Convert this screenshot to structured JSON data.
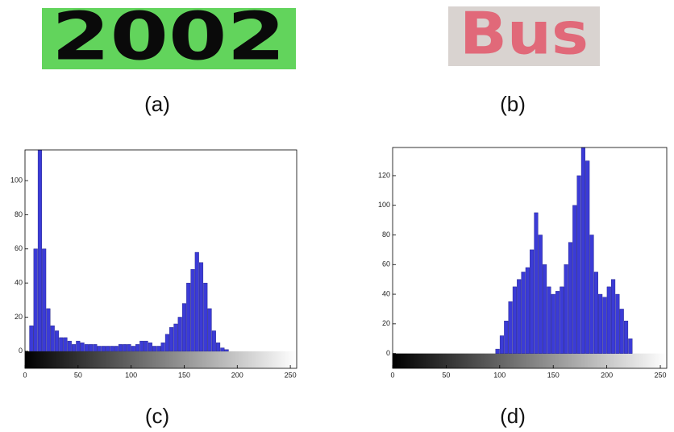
{
  "images": [
    {
      "text": "2002",
      "caption": "(a)"
    },
    {
      "text": "Bus",
      "caption": "(b)"
    }
  ],
  "chart_data": [
    {
      "type": "histogram",
      "caption": "(c)",
      "color": "#3b3bd6",
      "bins": [
        0,
        4,
        8,
        12,
        16,
        20,
        24,
        28,
        32,
        36,
        40,
        44,
        48,
        52,
        56,
        60,
        64,
        68,
        72,
        76,
        80,
        84,
        88,
        92,
        96,
        100,
        104,
        108,
        112,
        116,
        120,
        124,
        128,
        132,
        136,
        140,
        144,
        148,
        152,
        156,
        160,
        164,
        168,
        172,
        176,
        180,
        184,
        188,
        192,
        196,
        200,
        204,
        208,
        212,
        216,
        220,
        224,
        228,
        232,
        236,
        240,
        244,
        248,
        252,
        256
      ],
      "values": [
        0,
        15,
        60,
        118,
        60,
        25,
        15,
        12,
        8,
        8,
        6,
        4,
        6,
        5,
        4,
        4,
        4,
        3,
        3,
        3,
        3,
        3,
        4,
        4,
        4,
        3,
        4,
        6,
        6,
        5,
        3,
        3,
        5,
        10,
        14,
        16,
        20,
        28,
        40,
        48,
        58,
        52,
        40,
        25,
        12,
        5,
        2,
        1,
        0,
        0,
        0,
        0,
        0,
        0,
        0,
        0,
        0,
        0,
        0,
        0,
        0,
        0,
        0,
        0
      ],
      "xlim": [
        0,
        256
      ],
      "ylim": [
        -10,
        118
      ],
      "xticks": [
        0,
        50,
        100,
        150,
        200,
        250
      ],
      "yticks": [
        0,
        20,
        40,
        60,
        80,
        100
      ]
    },
    {
      "type": "histogram",
      "caption": "(d)",
      "color": "#3b3bd6",
      "bins": [
        0,
        4,
        8,
        12,
        16,
        20,
        24,
        28,
        32,
        36,
        40,
        44,
        48,
        52,
        56,
        60,
        64,
        68,
        72,
        76,
        80,
        84,
        88,
        92,
        96,
        100,
        104,
        108,
        112,
        116,
        120,
        124,
        128,
        132,
        136,
        140,
        144,
        148,
        152,
        156,
        160,
        164,
        168,
        172,
        176,
        180,
        184,
        188,
        192,
        196,
        200,
        204,
        208,
        212,
        216,
        220,
        224,
        228,
        232,
        236,
        240,
        244,
        248,
        252,
        256
      ],
      "values": [
        0,
        0,
        0,
        0,
        0,
        0,
        0,
        0,
        0,
        0,
        0,
        0,
        0,
        0,
        0,
        0,
        0,
        0,
        0,
        0,
        0,
        0,
        0,
        0,
        3,
        12,
        22,
        35,
        45,
        50,
        55,
        58,
        70,
        95,
        80,
        60,
        45,
        40,
        42,
        45,
        60,
        75,
        100,
        120,
        139,
        130,
        80,
        55,
        40,
        38,
        45,
        50,
        40,
        30,
        22,
        10,
        0,
        0,
        0,
        0,
        0,
        0,
        0,
        0
      ],
      "xlim": [
        0,
        256
      ],
      "ylim": [
        -10,
        139
      ],
      "xticks": [
        0,
        50,
        100,
        150,
        200,
        250
      ],
      "yticks": [
        0,
        20,
        40,
        60,
        80,
        100,
        120
      ]
    }
  ]
}
